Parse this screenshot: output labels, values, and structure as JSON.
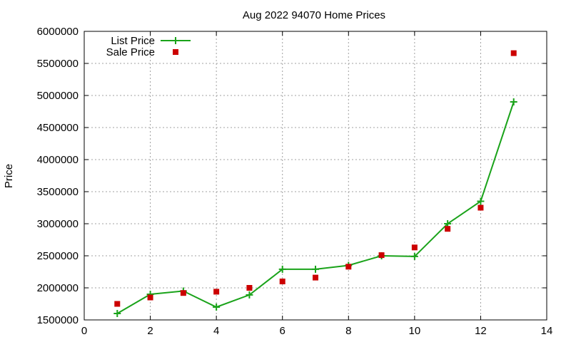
{
  "chart_data": {
    "type": "line",
    "title": "Aug 2022 94070 Home Prices",
    "xlabel": "",
    "ylabel": "Price",
    "xlim": [
      0,
      14
    ],
    "ylim": [
      1500000,
      6000000
    ],
    "xticks": [
      0,
      2,
      4,
      6,
      8,
      10,
      12,
      14
    ],
    "yticks": [
      1500000,
      2000000,
      2500000,
      3000000,
      3500000,
      4000000,
      4500000,
      5000000,
      5500000,
      6000000
    ],
    "grid": true,
    "legend_position": "top-left",
    "x": [
      1,
      2,
      3,
      4,
      5,
      6,
      7,
      8,
      9,
      10,
      11,
      12,
      13
    ],
    "series": [
      {
        "name": "List Price",
        "style": "lines+points",
        "marker": "plus",
        "color": "#1aa31a",
        "values": [
          1600000,
          1900000,
          1950000,
          1700000,
          1890000,
          2290000,
          2290000,
          2350000,
          2500000,
          2490000,
          3000000,
          3350000,
          4900000
        ]
      },
      {
        "name": "Sale Price",
        "style": "points",
        "marker": "square",
        "color": "#cc0000",
        "values": [
          1750000,
          1850000,
          1920000,
          1940000,
          2000000,
          2100000,
          2160000,
          2330000,
          2510000,
          2630000,
          2920000,
          3250000,
          5660000
        ]
      }
    ]
  }
}
